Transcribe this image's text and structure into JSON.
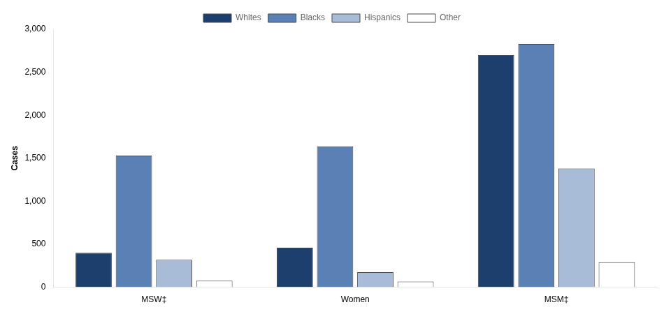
{
  "chart_data": {
    "type": "bar",
    "ylabel": "Cases",
    "categories": [
      "MSW‡",
      "Women",
      "MSM‡"
    ],
    "series": [
      {
        "name": "Whites",
        "color": "#1c3f6e",
        "values": [
          400,
          460,
          2700
        ]
      },
      {
        "name": "Blacks",
        "color": "#5b80b5",
        "values": [
          1530,
          1640,
          2830
        ]
      },
      {
        "name": "Hispanics",
        "color": "#a8bcd8",
        "values": [
          320,
          175,
          1380
        ]
      },
      {
        "name": "Other",
        "color": "#ffffff",
        "values": [
          75,
          65,
          290
        ]
      }
    ],
    "ylim": [
      0,
      3000
    ],
    "yticks": [
      0,
      500,
      {
        "value": 1000,
        "label": "1,000"
      },
      {
        "value": 1500,
        "label": "1,500"
      },
      {
        "value": 2000,
        "label": "2,000"
      },
      {
        "value": 2500,
        "label": "2,500"
      },
      {
        "value": 3000,
        "label": "3,000"
      }
    ],
    "grid": false,
    "legend": "top"
  }
}
